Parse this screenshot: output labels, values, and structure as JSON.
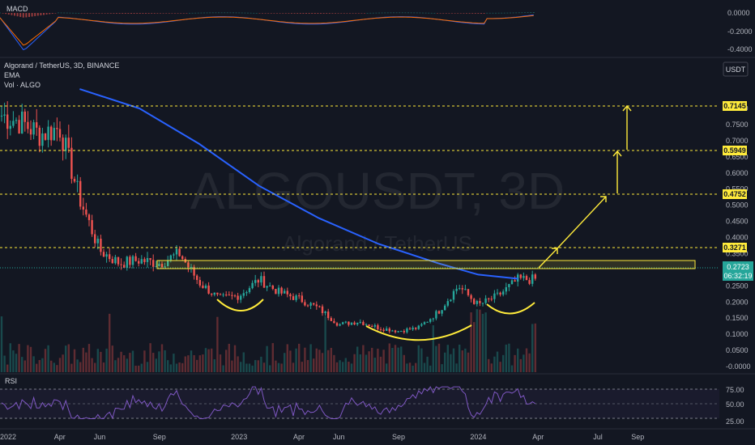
{
  "header": {
    "symbol_line": "Algorand / TetherUS, 3D, BINANCE",
    "ema_label": "EMA",
    "vol_label": "Vol · ALGO",
    "watermark_symbol": "ALGOUSDT, 3D",
    "watermark_name": "Algorand / TetherUS",
    "currency_button": "USDT"
  },
  "colors": {
    "background": "#131722",
    "up": "#26a69a",
    "down": "#ef5350",
    "ema": "#2962ff",
    "level_line": "#ffeb3b",
    "annotation": "#ffeb3b",
    "rsi": "#7e57c2",
    "macd": "#2962ff",
    "signal": "#ff6d00",
    "current_price": "#26a69a"
  },
  "chart_data": [
    {
      "type": "candlestick",
      "title": "Algorand / TetherUS, 3D, BINANCE",
      "ylim": [
        0.0,
        0.86
      ],
      "y_ticks": [
        "0.8000",
        "0.7500",
        "0.7000",
        "0.6500",
        "0.6000",
        "0.5500",
        "0.5000",
        "0.4500",
        "0.4000",
        "0.3500",
        "0.3000",
        "0.2500",
        "0.2000",
        "0.1500",
        "0.1000",
        "0.0500",
        "-0.0000"
      ],
      "x_ticks": [
        "2022",
        "Apr",
        "Jun",
        "Sep",
        "2023",
        "Apr",
        "Jun",
        "Sep",
        "2024",
        "Apr",
        "Jul",
        "Sep"
      ],
      "close_path_points": [
        [
          "2022-01",
          0.78
        ],
        [
          "2022-02",
          0.76
        ],
        [
          "2022-03",
          0.72
        ],
        [
          "2022-04",
          0.74
        ],
        [
          "2022-05",
          0.52
        ],
        [
          "2022-06",
          0.36
        ],
        [
          "2022-07",
          0.32
        ],
        [
          "2022-08",
          0.33
        ],
        [
          "2022-09",
          0.32
        ],
        [
          "2022-10",
          0.35
        ],
        [
          "2022-11",
          0.26
        ],
        [
          "2022-12",
          0.21
        ],
        [
          "2023-01",
          0.22
        ],
        [
          "2023-02",
          0.27
        ],
        [
          "2023-03",
          0.23
        ],
        [
          "2023-04",
          0.21
        ],
        [
          "2023-05",
          0.18
        ],
        [
          "2023-06",
          0.13
        ],
        [
          "2023-07",
          0.14
        ],
        [
          "2023-08",
          0.12
        ],
        [
          "2023-09",
          0.11
        ],
        [
          "2023-10",
          0.12
        ],
        [
          "2023-11",
          0.17
        ],
        [
          "2023-12",
          0.25
        ],
        [
          "2024-01",
          0.19
        ],
        [
          "2024-02",
          0.22
        ],
        [
          "2024-03",
          0.27
        ]
      ],
      "ema_points": [
        [
          "2022-05",
          0.86
        ],
        [
          "2022-08",
          0.8
        ],
        [
          "2022-11",
          0.69
        ],
        [
          "2023-02",
          0.56
        ],
        [
          "2023-05",
          0.46
        ],
        [
          "2023-08",
          0.38
        ],
        [
          "2023-11",
          0.32
        ],
        [
          "2024-01",
          0.285
        ],
        [
          "2024-03",
          0.272
        ]
      ],
      "levels": [
        "0.7145",
        "0.5949",
        "0.4752",
        "0.3271"
      ],
      "current_price": "0.2723",
      "countdown": "06:32:19",
      "annotations": [
        "zone-box 0.27–0.29",
        "rounded-bottom-arcs",
        "upward-targets-arrows"
      ]
    },
    {
      "type": "line",
      "title": "MACD",
      "y_ticks": [
        "0.0000",
        "-0.2000",
        "-0.4000"
      ],
      "series": [
        {
          "name": "MACD"
        },
        {
          "name": "Signal"
        }
      ]
    },
    {
      "type": "line",
      "title": "RSI",
      "y_ticks": [
        "75.00",
        "50.00",
        "25.00"
      ],
      "bands": [
        70,
        50,
        30
      ]
    }
  ]
}
